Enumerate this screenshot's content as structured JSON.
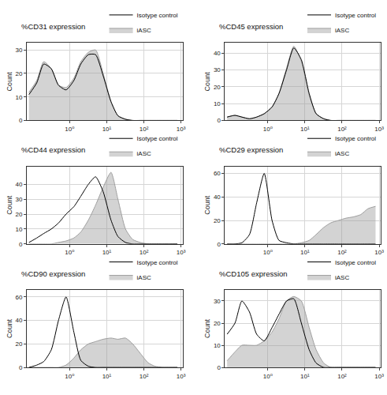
{
  "chart_data": [
    {
      "type": "line",
      "title": "%CD31 expression",
      "y_label": "Count",
      "log": "x",
      "grid": true,
      "legend": "upper right",
      "x": [
        0.08,
        0.13,
        0.2,
        0.32,
        0.5,
        0.8,
        1.3,
        2,
        3.2,
        5,
        8,
        13,
        20,
        32,
        50,
        80,
        130,
        200,
        320,
        500,
        800
      ],
      "xlim": [
        0.07,
        1100
      ],
      "xticks": [
        {
          "value": 1,
          "label": "10⁰"
        },
        {
          "value": 10,
          "label": "10¹"
        },
        {
          "value": 100,
          "label": "10²"
        },
        {
          "value": 1000,
          "label": "10³"
        }
      ],
      "ylim": [
        0,
        33
      ],
      "yticks": [
        0,
        10,
        20,
        30
      ],
      "series": [
        {
          "name": "Isotype control",
          "type": "line",
          "color": "#000000",
          "values": [
            11,
            16,
            24,
            22,
            15,
            13,
            17,
            24,
            28,
            28,
            19,
            8,
            2,
            0.5,
            0,
            0,
            0,
            0,
            0,
            0,
            0
          ]
        },
        {
          "name": "iASC",
          "type": "area",
          "color": "#9e9e9e",
          "values": [
            12,
            17,
            25,
            22,
            15,
            14,
            18,
            25,
            29,
            30,
            20,
            8,
            2,
            0.5,
            0,
            0,
            0,
            0,
            0,
            0,
            0
          ]
        }
      ]
    },
    {
      "type": "line",
      "title": "%CD45 expression",
      "y_label": "Count",
      "log": "x",
      "grid": true,
      "legend": "upper right",
      "x": [
        0.08,
        0.13,
        0.2,
        0.32,
        0.5,
        0.8,
        1.3,
        2,
        3.2,
        5,
        8,
        13,
        20,
        32,
        50,
        80,
        130,
        200,
        320,
        500,
        800
      ],
      "xlim": [
        0.07,
        1100
      ],
      "xticks": [
        {
          "value": 1,
          "label": "10⁰"
        },
        {
          "value": 10,
          "label": "10¹"
        },
        {
          "value": 100,
          "label": "10²"
        },
        {
          "value": 1000,
          "label": "10³"
        }
      ],
      "ylim": [
        0,
        46
      ],
      "yticks": [
        0,
        10,
        20,
        30,
        40
      ],
      "series": [
        {
          "name": "Isotype control",
          "type": "line",
          "color": "#000000",
          "values": [
            2,
            3,
            2,
            1,
            2,
            4,
            8,
            16,
            30,
            43,
            36,
            16,
            4,
            1,
            0,
            0,
            0,
            0,
            0,
            0,
            0
          ]
        },
        {
          "name": "iASC",
          "type": "area",
          "color": "#9e9e9e",
          "values": [
            2,
            3,
            2,
            1,
            2,
            4,
            8,
            16,
            31,
            44,
            35,
            15,
            4,
            1,
            0,
            0,
            0,
            0,
            0,
            0,
            0
          ]
        }
      ]
    },
    {
      "type": "line",
      "title": "%CD44 expression",
      "y_label": "Count",
      "log": "x",
      "grid": true,
      "legend": "upper right",
      "x": [
        0.08,
        0.13,
        0.2,
        0.32,
        0.5,
        0.8,
        1.3,
        2,
        3.2,
        5,
        8,
        13,
        20,
        32,
        50,
        80,
        130,
        200,
        320,
        500,
        800
      ],
      "xlim": [
        0.07,
        1100
      ],
      "xticks": [
        {
          "value": 1,
          "label": "10⁰"
        },
        {
          "value": 10,
          "label": "10¹"
        },
        {
          "value": 100,
          "label": "10²"
        },
        {
          "value": 1000,
          "label": "10³"
        }
      ],
      "ylim": [
        0,
        52
      ],
      "yticks": [
        0,
        10,
        20,
        30,
        40
      ],
      "series": [
        {
          "name": "Isotype control",
          "type": "line",
          "color": "#000000",
          "values": [
            1,
            4,
            7,
            10,
            14,
            20,
            25,
            32,
            40,
            45,
            35,
            16,
            5,
            1,
            0,
            0,
            0,
            0,
            0,
            0,
            0
          ]
        },
        {
          "name": "iASC",
          "type": "area",
          "color": "#9e9e9e",
          "values": [
            0,
            0,
            0,
            0,
            1,
            2,
            4,
            8,
            16,
            26,
            38,
            48,
            30,
            10,
            3,
            1,
            0,
            0,
            0,
            0,
            0
          ]
        }
      ]
    },
    {
      "type": "line",
      "title": "%CD29 expression",
      "y_label": "Count",
      "log": "x",
      "grid": true,
      "legend": "upper right",
      "x": [
        0.08,
        0.13,
        0.2,
        0.32,
        0.5,
        0.8,
        1.3,
        2,
        3.2,
        5,
        8,
        13,
        20,
        32,
        50,
        80,
        130,
        200,
        320,
        500,
        800
      ],
      "xlim": [
        0.07,
        1100
      ],
      "xticks": [
        {
          "value": 1,
          "label": "10⁰"
        },
        {
          "value": 10,
          "label": "10¹"
        },
        {
          "value": 100,
          "label": "10²"
        },
        {
          "value": 1000,
          "label": "10³"
        }
      ],
      "ylim": [
        0,
        66
      ],
      "yticks": [
        0,
        20,
        40,
        60
      ],
      "series": [
        {
          "name": "Isotype control",
          "type": "line",
          "color": "#000000",
          "values": [
            0,
            0,
            1,
            8,
            35,
            60,
            20,
            3,
            1,
            0,
            0,
            0,
            0,
            0,
            0,
            0,
            0,
            0,
            0,
            0,
            0
          ]
        },
        {
          "name": "iASC",
          "type": "area",
          "color": "#9e9e9e",
          "values": [
            0,
            0,
            0,
            0,
            0,
            0,
            0,
            0,
            0,
            0,
            1,
            3,
            8,
            14,
            18,
            20,
            22,
            23,
            25,
            30,
            32
          ]
        }
      ]
    },
    {
      "type": "line",
      "title": "%CD90 expression",
      "y_label": "Count",
      "log": "x",
      "grid": true,
      "legend": "upper right",
      "x": [
        0.08,
        0.13,
        0.2,
        0.32,
        0.5,
        0.8,
        1.3,
        2,
        3.2,
        5,
        8,
        13,
        20,
        32,
        50,
        80,
        130,
        200,
        320,
        500,
        800
      ],
      "xlim": [
        0.07,
        1100
      ],
      "xticks": [
        {
          "value": 1,
          "label": "10⁰"
        },
        {
          "value": 10,
          "label": "10¹"
        },
        {
          "value": 100,
          "label": "10²"
        },
        {
          "value": 1000,
          "label": "10³"
        }
      ],
      "ylim": [
        0,
        66
      ],
      "yticks": [
        0,
        20,
        40,
        60
      ],
      "series": [
        {
          "name": "Isotype control",
          "type": "line",
          "color": "#000000",
          "values": [
            0,
            2,
            5,
            15,
            40,
            60,
            30,
            6,
            1,
            0,
            0,
            0,
            0,
            0,
            0,
            0,
            0,
            0,
            0,
            0,
            0
          ]
        },
        {
          "name": "iASC",
          "type": "area",
          "color": "#9e9e9e",
          "values": [
            0,
            0,
            0,
            0,
            0,
            2,
            8,
            15,
            20,
            22,
            24,
            25,
            24,
            25,
            20,
            12,
            4,
            1,
            0,
            0,
            0
          ]
        }
      ]
    },
    {
      "type": "line",
      "title": "%CD105 expression",
      "y_label": "Count",
      "log": "x",
      "grid": true,
      "legend": "upper right",
      "x": [
        0.08,
        0.13,
        0.2,
        0.32,
        0.5,
        0.8,
        1.3,
        2,
        3.2,
        5,
        8,
        13,
        20,
        32,
        50,
        80,
        130,
        200,
        320,
        500,
        800
      ],
      "xlim": [
        0.07,
        1100
      ],
      "xticks": [
        {
          "value": 1,
          "label": "10⁰"
        },
        {
          "value": 10,
          "label": "10¹"
        },
        {
          "value": 100,
          "label": "10²"
        },
        {
          "value": 1000,
          "label": "10³"
        }
      ],
      "ylim": [
        0,
        35
      ],
      "yticks": [
        0,
        10,
        20,
        30
      ],
      "series": [
        {
          "name": "Isotype control",
          "type": "line",
          "color": "#000000",
          "values": [
            15,
            20,
            30,
            25,
            15,
            12,
            18,
            24,
            30,
            31,
            20,
            8,
            2,
            0,
            0,
            0,
            0,
            0,
            0,
            0,
            0
          ]
        },
        {
          "name": "iASC",
          "type": "area",
          "color": "#9e9e9e",
          "values": [
            3,
            7,
            10,
            10,
            10,
            12,
            16,
            22,
            30,
            32,
            30,
            18,
            8,
            2,
            0,
            0,
            0,
            0,
            0,
            0,
            0
          ]
        }
      ]
    }
  ]
}
